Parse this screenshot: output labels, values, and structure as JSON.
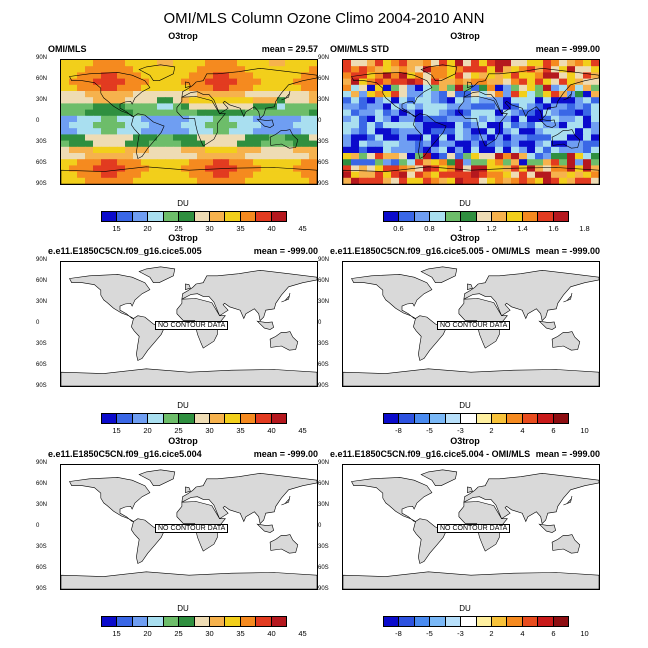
{
  "main_title": "OMI/MLS Column Ozone Climo 2004-2010 ANN",
  "colors_abs": [
    "#0b0bcc",
    "#3a67e6",
    "#6f9ef2",
    "#a9dff0",
    "#6dbd6a",
    "#2f8f3f",
    "#eedcb4",
    "#f6b24d",
    "#f2cf1b",
    "#f58a1f",
    "#e23b20",
    "#b5181e"
  ],
  "colors_std": [
    "#0b0bcc",
    "#3a67e6",
    "#6f9ef2",
    "#a9dff0",
    "#6dbd6a",
    "#2f8f3f",
    "#eedcb4",
    "#f6b24d",
    "#f2cf1b",
    "#f58a1f",
    "#e23b20",
    "#b5181e"
  ],
  "colors_diff": [
    "#0b0bcc",
    "#2d52e0",
    "#4a8bf0",
    "#7ab8f7",
    "#b8e0fb",
    "#ffffff",
    "#fff0a0",
    "#f7c23a",
    "#f58a1f",
    "#e84c1e",
    "#c91a1a",
    "#8e0e12"
  ],
  "lat_labels": [
    "90N",
    "60N",
    "30N",
    "0",
    "30S",
    "60S",
    "90S"
  ],
  "nodata_text": "NO CONTOUR DATA",
  "panels": [
    {
      "title": "O3trop",
      "left": "OMI/MLS",
      "right": "mean = 29.57",
      "cb_title": "DU",
      "scale": "abs",
      "labels": [
        "15",
        "20",
        "25",
        "30",
        "35",
        "40",
        "45"
      ],
      "map": "abs"
    },
    {
      "title": "O3trop",
      "left": "OMI/MLS STD",
      "right": "mean = -999.00",
      "cb_title": "DU",
      "scale": "std",
      "labels": [
        "0.6",
        "0.8",
        "1",
        "1.2",
        "1.4",
        "1.6",
        "1.8"
      ],
      "map": "std"
    },
    {
      "title": "O3trop",
      "left": "e.e11.E1850C5CN.f09_g16.cice5.005",
      "right": "mean = -999.00",
      "cb_title": "DU",
      "scale": "abs",
      "labels": [
        "15",
        "20",
        "25",
        "30",
        "35",
        "40",
        "45"
      ],
      "map": "blank"
    },
    {
      "title": "O3trop",
      "left": "e.e11.E1850C5CN.f09_g16.cice5.005 - OMI/MLS",
      "right": "mean = -999.00",
      "cb_title": "DU",
      "scale": "diff",
      "labels": [
        "-8",
        "-5",
        "-3",
        "2",
        "4",
        "6",
        "10"
      ],
      "map": "blank"
    },
    {
      "title": "O3trop",
      "left": "e.e11.E1850C5CN.f09_g16.cice5.004",
      "right": "mean = -999.00",
      "cb_title": "DU",
      "scale": "abs",
      "labels": [
        "15",
        "20",
        "25",
        "30",
        "35",
        "40",
        "45"
      ],
      "map": "blank"
    },
    {
      "title": "O3trop",
      "left": "e.e11.E1850C5CN.f09_g16.cice5.004 - OMI/MLS",
      "right": "mean = -999.00",
      "cb_title": "DU",
      "scale": "diff",
      "labels": [
        "-8",
        "-5",
        "-3",
        "2",
        "4",
        "6",
        "10"
      ],
      "map": "blank"
    }
  ],
  "chart_data": [
    {
      "type": "heatmap",
      "title": "O3trop",
      "subtitle_left": "OMI/MLS",
      "subtitle_right": "mean = 29.57",
      "colorbar_label": "DU",
      "colorbar_ticks": [
        15,
        20,
        25,
        30,
        35,
        40,
        45
      ],
      "ylim": [
        "90S",
        "90N"
      ]
    },
    {
      "type": "heatmap",
      "title": "O3trop",
      "subtitle_left": "OMI/MLS STD",
      "subtitle_right": "mean = -999.00",
      "colorbar_label": "DU",
      "colorbar_ticks": [
        0.6,
        0.8,
        1,
        1.2,
        1.4,
        1.6,
        1.8
      ],
      "ylim": [
        "90S",
        "90N"
      ]
    },
    {
      "type": "heatmap",
      "title": "O3trop",
      "subtitle_left": "e.e11.E1850C5CN.f09_g16.cice5.005",
      "subtitle_right": "mean = -999.00",
      "colorbar_label": "DU",
      "colorbar_ticks": [
        15,
        20,
        25,
        30,
        35,
        40,
        45
      ],
      "note": "NO CONTOUR DATA"
    },
    {
      "type": "heatmap",
      "title": "O3trop",
      "subtitle_left": "e.e11.E1850C5CN.f09_g16.cice5.005 - OMI/MLS",
      "subtitle_right": "mean = -999.00",
      "colorbar_label": "DU",
      "colorbar_ticks": [
        -8,
        -5,
        -3,
        2,
        4,
        6,
        10
      ],
      "note": "NO CONTOUR DATA"
    },
    {
      "type": "heatmap",
      "title": "O3trop",
      "subtitle_left": "e.e11.E1850C5CN.f09_g16.cice5.004",
      "subtitle_right": "mean = -999.00",
      "colorbar_label": "DU",
      "colorbar_ticks": [
        15,
        20,
        25,
        30,
        35,
        40,
        45
      ],
      "note": "NO CONTOUR DATA"
    },
    {
      "type": "heatmap",
      "title": "O3trop",
      "subtitle_left": "e.e11.E1850C5CN.f09_g16.cice5.004 - OMI/MLS",
      "subtitle_right": "mean = -999.00",
      "colorbar_label": "DU",
      "colorbar_ticks": [
        -8,
        -5,
        -3,
        2,
        4,
        6,
        10
      ],
      "note": "NO CONTOUR DATA"
    }
  ]
}
